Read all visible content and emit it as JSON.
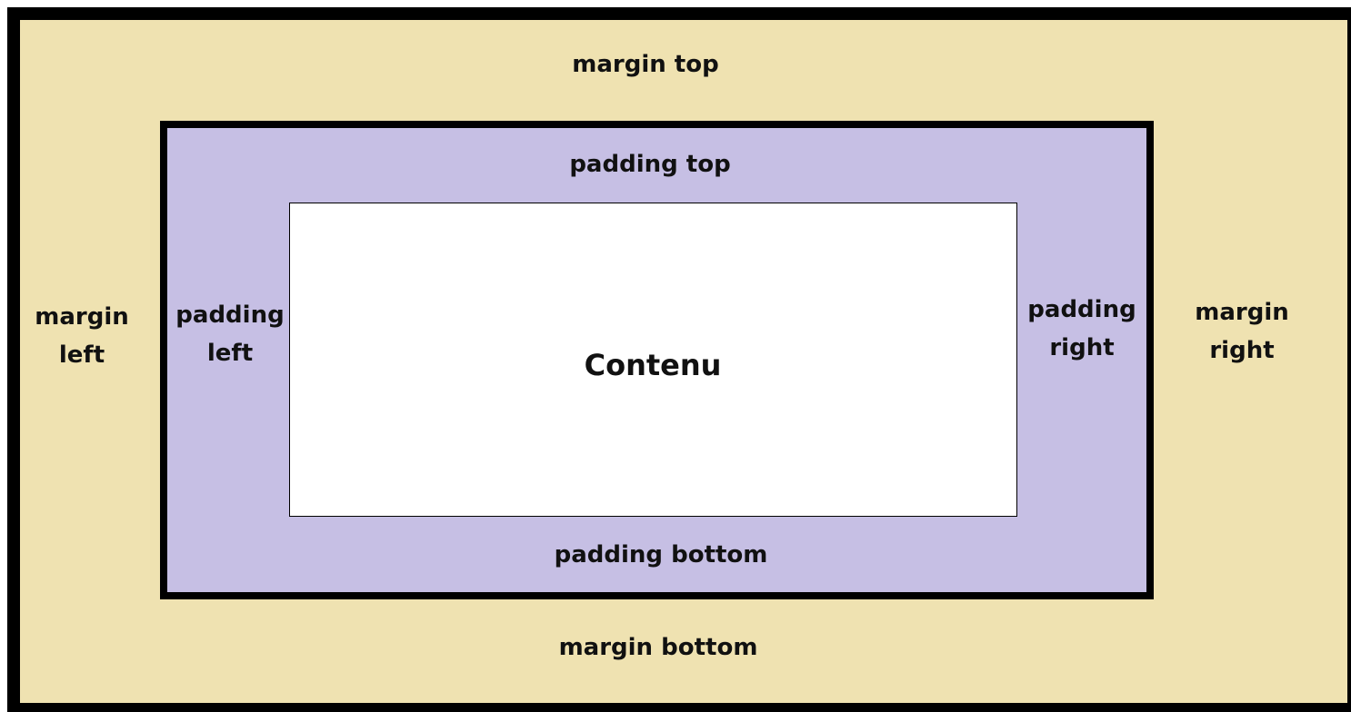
{
  "colors": {
    "margin_area": "#efe2b1",
    "padding_area": "#c6bfe4",
    "content_area": "#ffffff",
    "border": "#000000"
  },
  "labels": {
    "margin_top": "margin top",
    "margin_left": "margin\nleft",
    "margin_right": "margin\nright",
    "margin_bottom": "margin bottom",
    "padding_top": "padding top",
    "padding_left": "padding\nleft",
    "padding_right": "padding\nright",
    "padding_bottom": "padding bottom",
    "content": "Contenu"
  }
}
